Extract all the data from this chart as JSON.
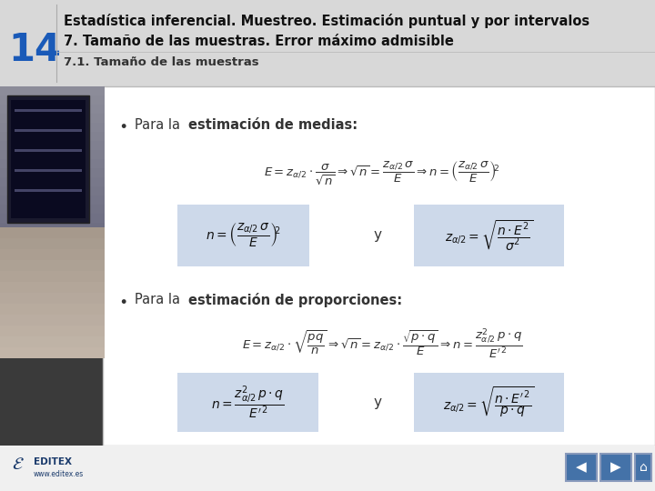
{
  "title_number": "14",
  "title_number_color": "#1a5ab8",
  "title_line1": "Estadística inferencial. Muestreo. Estimación puntual y por intervalos",
  "title_line2": "7. Tamaño de las muestras. Error máximo admisible",
  "title_line3": "7.1. Tamaño de las muestras",
  "header_bg": "#d8d8d8",
  "content_bg": "#ffffff",
  "box_bg": "#cdd9ea",
  "footer_bg": "#f0f0f0",
  "nav_btn_color": "#4472a8"
}
